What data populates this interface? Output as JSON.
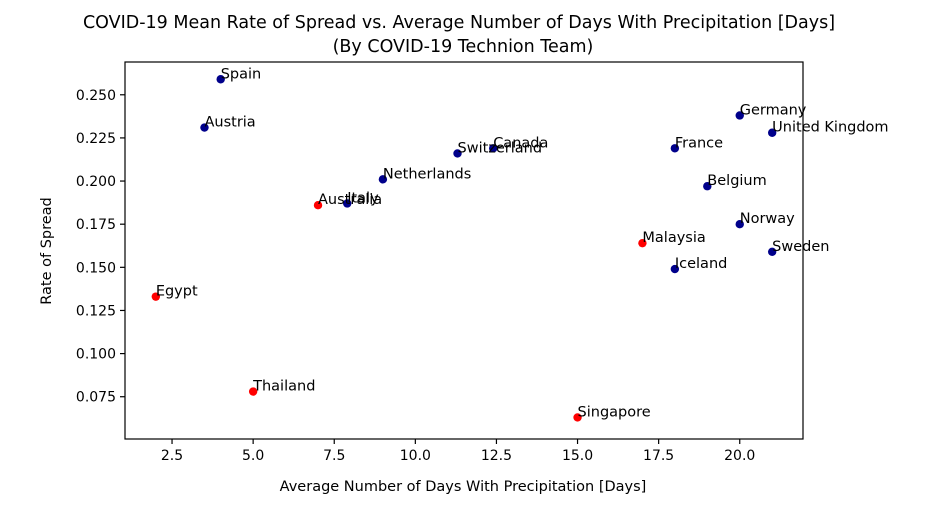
{
  "chart_data": {
    "type": "scatter",
    "title": "COVID-19 Mean Rate of Spread vs. Average Number of Days With Precipitation [Days]",
    "subtitle": "(By COVID-19 Technion Team)",
    "xlabel": "Average Number of Days With Precipitation [Days]",
    "ylabel": "Rate of Spread",
    "xlim": [
      1.05,
      21.95
    ],
    "ylim": [
      0.0505,
      0.269
    ],
    "xticks": [
      2.5,
      5.0,
      7.5,
      10.0,
      12.5,
      15.0,
      17.5,
      20.0
    ],
    "xtick_labels": [
      "2.5",
      "5.0",
      "7.5",
      "10.0",
      "12.5",
      "15.0",
      "17.5",
      "20.0"
    ],
    "yticks": [
      0.075,
      0.1,
      0.125,
      0.15,
      0.175,
      0.2,
      0.225,
      0.25
    ],
    "ytick_labels": [
      "0.075",
      "0.100",
      "0.125",
      "0.150",
      "0.175",
      "0.200",
      "0.225",
      "0.250"
    ],
    "grid": false,
    "colors": {
      "group_a": "#00008b",
      "group_b": "#ff0000"
    },
    "points": [
      {
        "label": "Spain",
        "x": 4.0,
        "y": 0.259,
        "group": "group_a"
      },
      {
        "label": "Austria",
        "x": 3.5,
        "y": 0.231,
        "group": "group_a"
      },
      {
        "label": "Germany",
        "x": 20.0,
        "y": 0.238,
        "group": "group_a"
      },
      {
        "label": "United Kingdom",
        "x": 21.0,
        "y": 0.228,
        "group": "group_a"
      },
      {
        "label": "Canada",
        "x": 12.4,
        "y": 0.219,
        "group": "group_a"
      },
      {
        "label": "Switzerland",
        "x": 11.3,
        "y": 0.216,
        "group": "group_a"
      },
      {
        "label": "France",
        "x": 18.0,
        "y": 0.219,
        "group": "group_a"
      },
      {
        "label": "Netherlands",
        "x": 9.0,
        "y": 0.201,
        "group": "group_a"
      },
      {
        "label": "Belgium",
        "x": 19.0,
        "y": 0.197,
        "group": "group_a"
      },
      {
        "label": "Italy",
        "x": 7.9,
        "y": 0.187,
        "group": "group_a"
      },
      {
        "label": "Australia",
        "x": 7.0,
        "y": 0.186,
        "group": "group_b"
      },
      {
        "label": "Norway",
        "x": 20.0,
        "y": 0.175,
        "group": "group_a"
      },
      {
        "label": "Malaysia",
        "x": 17.0,
        "y": 0.164,
        "group": "group_b"
      },
      {
        "label": "Sweden",
        "x": 21.0,
        "y": 0.159,
        "group": "group_a"
      },
      {
        "label": "Iceland",
        "x": 18.0,
        "y": 0.149,
        "group": "group_a"
      },
      {
        "label": "Egypt",
        "x": 2.0,
        "y": 0.133,
        "group": "group_b"
      },
      {
        "label": "Thailand",
        "x": 5.0,
        "y": 0.078,
        "group": "group_b"
      },
      {
        "label": "Singapore",
        "x": 15.0,
        "y": 0.063,
        "group": "group_b"
      }
    ]
  }
}
